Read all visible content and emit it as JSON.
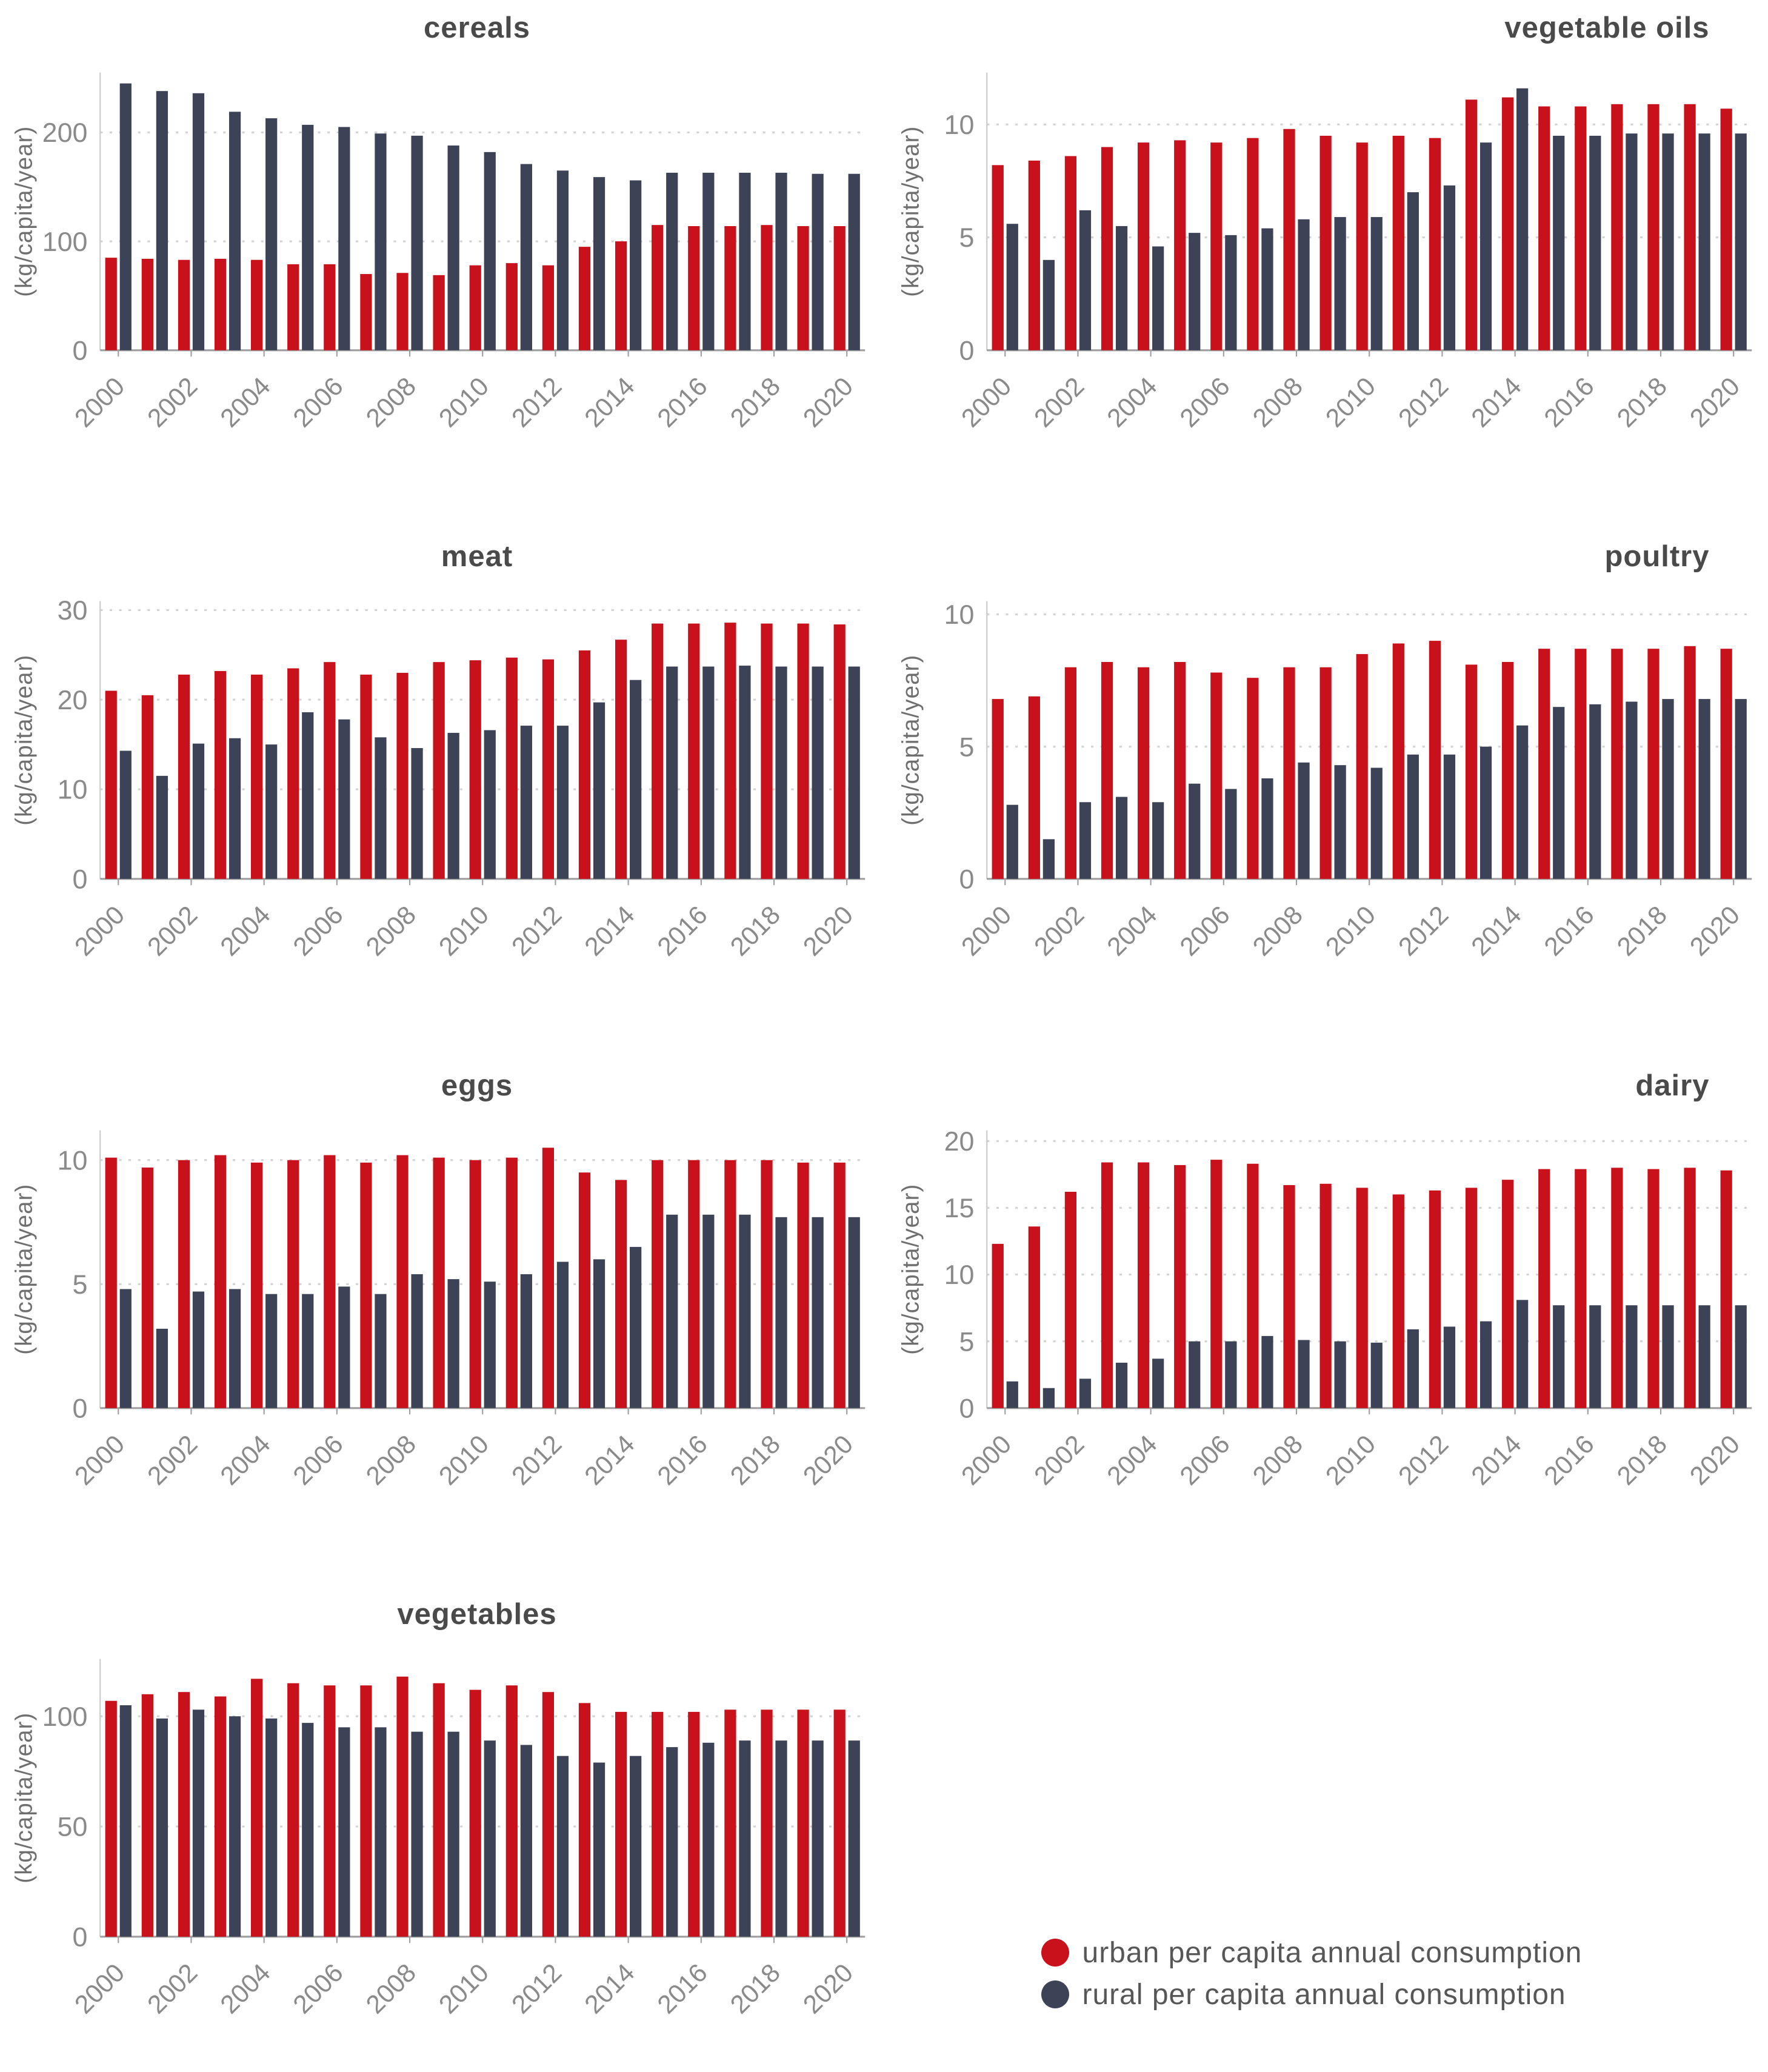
{
  "legend": {
    "urban": "urban per capita annual consumption",
    "rural": "rural per capita annual consumption"
  },
  "chart_data": {
    "type": "bar",
    "unit_label": "(kg/capita/year)",
    "years": [
      2000,
      2001,
      2002,
      2003,
      2004,
      2005,
      2006,
      2007,
      2008,
      2009,
      2010,
      2011,
      2012,
      2013,
      2014,
      2015,
      2016,
      2017,
      2018,
      2019,
      2020
    ],
    "xticks": [
      "2000",
      "2002",
      "2004",
      "2006",
      "2008",
      "2010",
      "2012",
      "2014",
      "2016",
      "2018",
      "2020"
    ],
    "legend_position": "bottom-right",
    "grid": "dashed horizontal at each y tick",
    "colors": {
      "urban": "#c8111a",
      "rural": "#3d4356"
    },
    "charts": [
      {
        "id": "cereals",
        "title": "cereals",
        "ylabel": "(kg/capita/year)",
        "yticks": [
          0,
          100,
          200
        ],
        "ymax": 255,
        "series": [
          {
            "name": "urban",
            "values": [
              85,
              84,
              83,
              84,
              83,
              79,
              79,
              70,
              71,
              69,
              78,
              80,
              78,
              95,
              100,
              115,
              114,
              114,
              115,
              114,
              114
            ]
          },
          {
            "name": "rural",
            "values": [
              245,
              238,
              236,
              219,
              213,
              207,
              205,
              199,
              197,
              188,
              182,
              171,
              165,
              159,
              156,
              163,
              163,
              163,
              163,
              162,
              162
            ]
          }
        ]
      },
      {
        "id": "vegetable-oils",
        "title": "vegetable oils",
        "ylabel": "(kg/capita/year)",
        "yticks": [
          0,
          5,
          10
        ],
        "ymax": 12.3,
        "series": [
          {
            "name": "urban",
            "values": [
              8.2,
              8.4,
              8.6,
              9.0,
              9.2,
              9.3,
              9.2,
              9.4,
              9.8,
              9.5,
              9.2,
              9.5,
              9.4,
              11.1,
              11.2,
              10.8,
              10.8,
              10.9,
              10.9,
              10.9,
              10.7
            ]
          },
          {
            "name": "rural",
            "values": [
              5.6,
              4.0,
              6.2,
              5.5,
              4.6,
              5.2,
              5.1,
              5.4,
              5.8,
              5.9,
              5.9,
              7.0,
              7.3,
              9.2,
              11.6,
              9.5,
              9.5,
              9.6,
              9.6,
              9.6,
              9.6
            ]
          }
        ]
      },
      {
        "id": "meat",
        "title": "meat",
        "ylabel": "(kg/capita/year)",
        "yticks": [
          0,
          10,
          20,
          30
        ],
        "ymax": 31,
        "series": [
          {
            "name": "urban",
            "values": [
              21.0,
              20.5,
              22.8,
              23.2,
              22.8,
              23.5,
              24.2,
              22.8,
              23.0,
              24.2,
              24.4,
              24.7,
              24.5,
              25.5,
              26.7,
              28.5,
              28.5,
              28.6,
              28.5,
              28.5,
              28.4
            ]
          },
          {
            "name": "rural",
            "values": [
              14.3,
              11.5,
              15.1,
              15.7,
              15.0,
              18.6,
              17.8,
              15.8,
              14.6,
              16.3,
              16.6,
              17.1,
              17.1,
              19.7,
              22.2,
              23.7,
              23.7,
              23.8,
              23.7,
              23.7,
              23.7
            ]
          }
        ]
      },
      {
        "id": "poultry",
        "title": "poultry",
        "ylabel": "(kg/capita/year)",
        "yticks": [
          0,
          5,
          10
        ],
        "ymax": 10.5,
        "series": [
          {
            "name": "urban",
            "values": [
              6.8,
              6.9,
              8.0,
              8.2,
              8.0,
              8.2,
              7.8,
              7.6,
              8.0,
              8.0,
              8.5,
              8.9,
              9.0,
              8.1,
              8.2,
              8.7,
              8.7,
              8.7,
              8.7,
              8.8,
              8.7
            ]
          },
          {
            "name": "rural",
            "values": [
              2.8,
              1.5,
              2.9,
              3.1,
              2.9,
              3.6,
              3.4,
              3.8,
              4.4,
              4.3,
              4.2,
              4.7,
              4.7,
              5.0,
              5.8,
              6.5,
              6.6,
              6.7,
              6.8,
              6.8,
              6.8
            ]
          }
        ]
      },
      {
        "id": "eggs",
        "title": "eggs",
        "ylabel": "(kg/capita/year)",
        "yticks": [
          0,
          5,
          10
        ],
        "ymax": 11.2,
        "series": [
          {
            "name": "urban",
            "values": [
              10.1,
              9.7,
              10.0,
              10.2,
              9.9,
              10.0,
              10.2,
              9.9,
              10.2,
              10.1,
              10.0,
              10.1,
              10.5,
              9.5,
              9.2,
              10.0,
              10.0,
              10.0,
              10.0,
              9.9,
              9.9
            ]
          },
          {
            "name": "rural",
            "values": [
              4.8,
              3.2,
              4.7,
              4.8,
              4.6,
              4.6,
              4.9,
              4.6,
              5.4,
              5.2,
              5.1,
              5.4,
              5.9,
              6.0,
              6.5,
              7.8,
              7.8,
              7.8,
              7.7,
              7.7,
              7.7
            ]
          }
        ]
      },
      {
        "id": "dairy",
        "title": "dairy",
        "ylabel": "(kg/capita/year)",
        "yticks": [
          0,
          5,
          10,
          15,
          20
        ],
        "ymax": 20.8,
        "series": [
          {
            "name": "urban",
            "values": [
              12.3,
              13.6,
              16.2,
              18.4,
              18.4,
              18.2,
              18.6,
              18.3,
              16.7,
              16.8,
              16.5,
              16.0,
              16.3,
              16.5,
              17.1,
              17.9,
              17.9,
              18.0,
              17.9,
              18.0,
              17.8
            ]
          },
          {
            "name": "rural",
            "values": [
              2.0,
              1.5,
              2.2,
              3.4,
              3.7,
              5.0,
              5.0,
              5.4,
              5.1,
              5.0,
              4.9,
              5.9,
              6.1,
              6.5,
              8.1,
              7.7,
              7.7,
              7.7,
              7.7,
              7.7,
              7.7
            ]
          }
        ]
      },
      {
        "id": "vegetables",
        "title": "vegetables",
        "ylabel": "(kg/capita/year)",
        "yticks": [
          0,
          50,
          100
        ],
        "ymax": 126,
        "series": [
          {
            "name": "urban",
            "values": [
              107,
              110,
              111,
              109,
              117,
              115,
              114,
              114,
              118,
              115,
              112,
              114,
              111,
              106,
              102,
              102,
              102,
              103,
              103,
              103,
              103
            ]
          },
          {
            "name": "rural",
            "values": [
              105,
              99,
              103,
              100,
              99,
              97,
              95,
              95,
              93,
              93,
              89,
              87,
              82,
              79,
              82,
              86,
              88,
              89,
              89,
              89,
              89
            ]
          }
        ]
      }
    ]
  }
}
